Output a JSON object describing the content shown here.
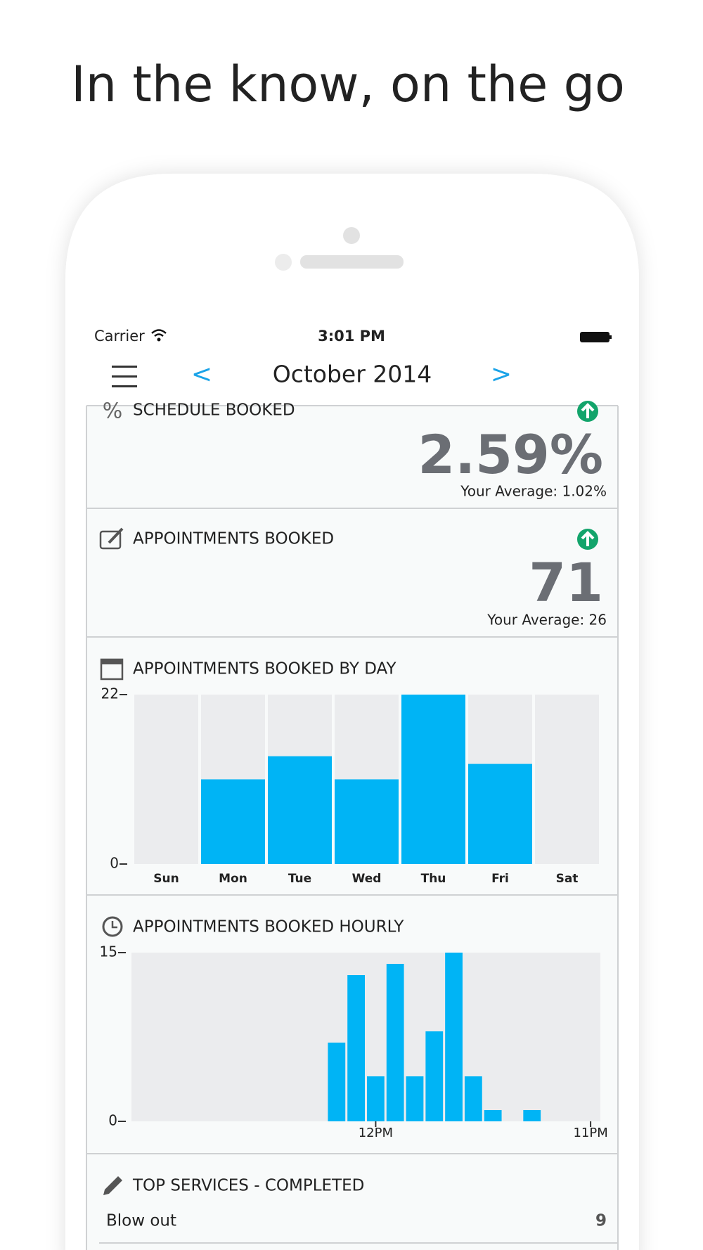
{
  "headline": "In the know, on the go",
  "status_bar": {
    "carrier": "Carrier",
    "time": "3:01 PM"
  },
  "nav": {
    "prev": "<",
    "title": "October 2014",
    "next": ">"
  },
  "cards": [
    {
      "title": "SCHEDULE BOOKED",
      "value": "2.59%",
      "average": "Your Average: 1.02%"
    },
    {
      "title": "APPOINTMENTS BOOKED",
      "value": "71",
      "average": "Your Average: 26"
    }
  ],
  "chart_data": [
    {
      "type": "bar",
      "title": "APPOINTMENTS BOOKED BY DAY",
      "categories": [
        "Sun",
        "Mon",
        "Tue",
        "Wed",
        "Thu",
        "Fri",
        "Sat"
      ],
      "values": [
        0,
        11,
        14,
        11,
        22,
        13,
        0
      ],
      "color": "#00b4f5",
      "ylim": [
        0,
        22
      ],
      "yticks": [
        0,
        22
      ]
    },
    {
      "type": "bar",
      "title": "APPOINTMENTS BOOKED HOURLY",
      "categories": [
        null,
        null,
        null,
        null,
        null,
        null,
        null,
        null,
        null,
        null,
        null,
        null,
        "12PM",
        null,
        null,
        null,
        null,
        null,
        null,
        null,
        null,
        null,
        null,
        "11PM"
      ],
      "values": [
        0,
        0,
        0,
        0,
        0,
        0,
        0,
        0,
        0,
        0,
        7,
        13,
        4,
        14,
        4,
        8,
        15,
        4,
        1,
        0,
        1,
        0,
        0,
        0
      ],
      "color": "#00b4f5",
      "ylim": [
        0,
        15
      ],
      "yticks": [
        0,
        15
      ]
    }
  ],
  "top_services": {
    "title": "TOP SERVICES - COMPLETED",
    "rows": [
      [
        "Blow out",
        9
      ]
    ]
  }
}
